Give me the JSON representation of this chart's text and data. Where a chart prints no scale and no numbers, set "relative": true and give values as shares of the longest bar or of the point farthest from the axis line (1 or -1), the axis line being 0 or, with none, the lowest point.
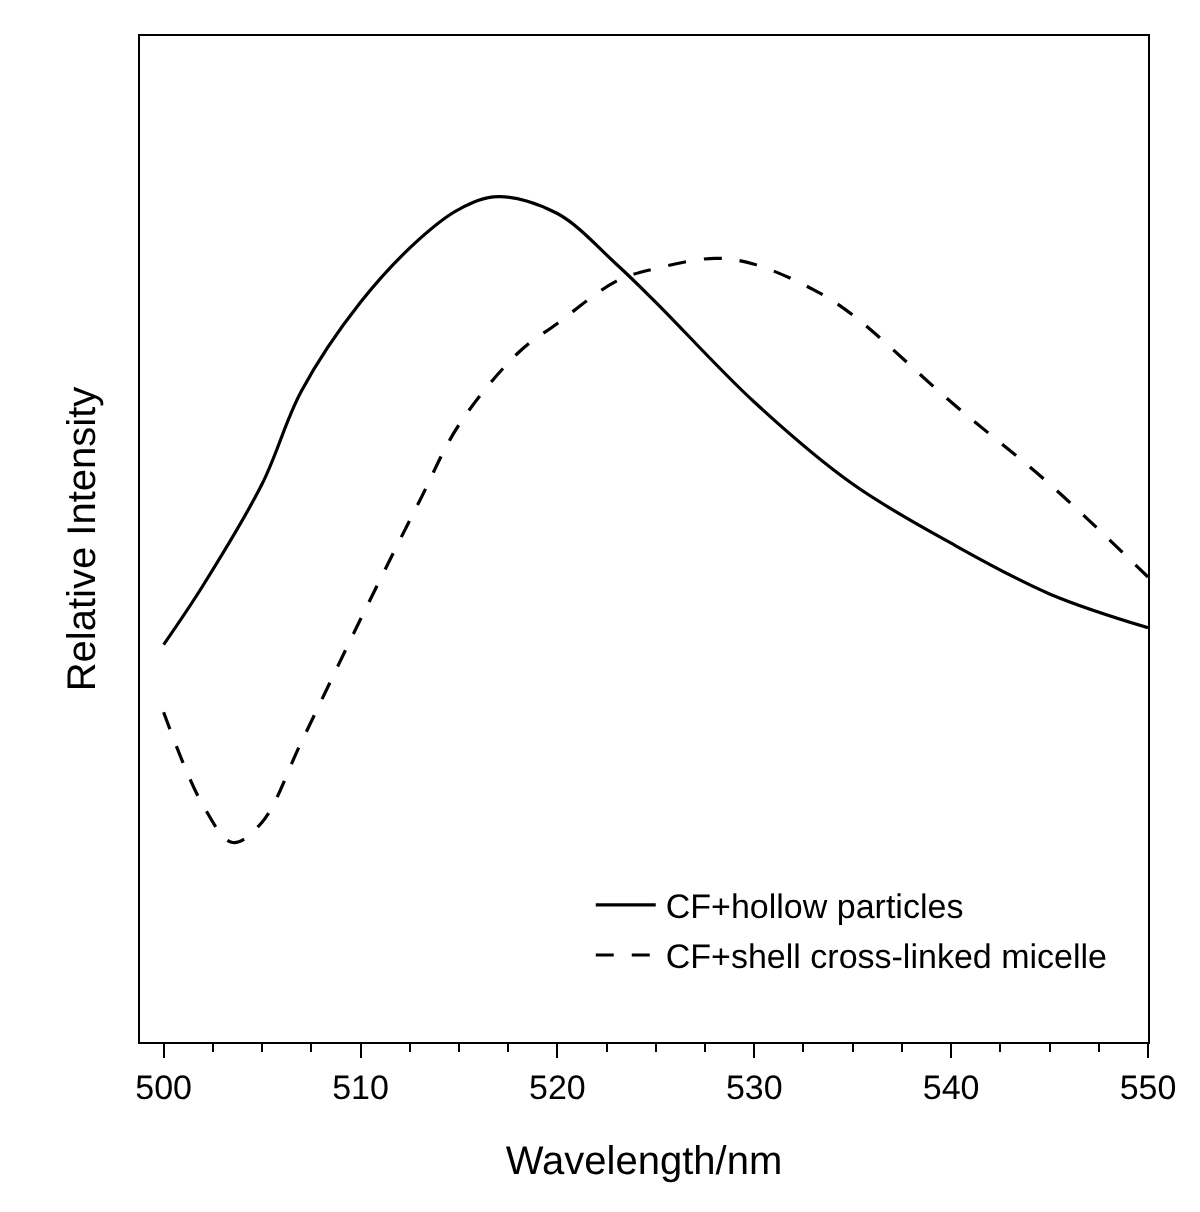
{
  "chart_data": {
    "type": "line",
    "relative": true,
    "xlabel": "Wavelength/nm",
    "ylabel": "Relative Intensity",
    "xlim": [
      498.8,
      550
    ],
    "xticks": [
      500,
      510,
      520,
      530,
      540,
      550
    ],
    "legend": "bottom right",
    "marker": "none",
    "series": [
      {
        "name": "CF+hollow particles",
        "color": "#000000",
        "line_style": "solid",
        "x": [
          500,
          502,
          505,
          507,
          510,
          513,
          515,
          517,
          520,
          523,
          525,
          530,
          535,
          540,
          545,
          550
        ],
        "values": [
          0.47,
          0.54,
          0.66,
          0.77,
          0.875,
          0.95,
          0.985,
          1,
          0.98,
          0.92,
          0.875,
          0.757,
          0.66,
          0.59,
          0.53,
          0.49
        ]
      },
      {
        "name": "CF+shell cross-linked micelle",
        "color": "#000000",
        "line_style": "dashed",
        "x": [
          500,
          502,
          503.5,
          505,
          507,
          510,
          513,
          515,
          518,
          520,
          523,
          525,
          528,
          530,
          533,
          535,
          540,
          545,
          550
        ],
        "values": [
          0.39,
          0.28,
          0.236,
          0.26,
          0.355,
          0.5,
          0.64,
          0.73,
          0.815,
          0.85,
          0.9,
          0.915,
          0.927,
          0.92,
          0.89,
          0.86,
          0.757,
          0.66,
          0.55
        ]
      }
    ]
  }
}
